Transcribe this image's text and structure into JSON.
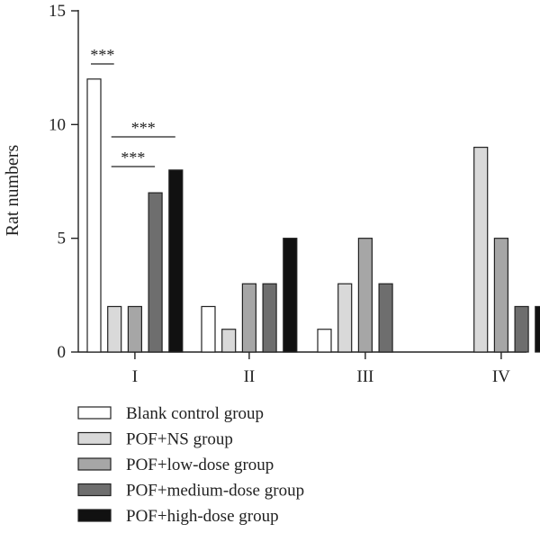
{
  "chart_data": {
    "type": "bar",
    "title": "",
    "xlabel": "",
    "ylabel": "Rat numbers",
    "ylim": [
      0,
      15
    ],
    "yticks": [
      0,
      5,
      10,
      15
    ],
    "categories": [
      "I",
      "II",
      "III",
      "IV"
    ],
    "series": [
      {
        "name": "Blank control group",
        "color": "#ffffff",
        "values": [
          12,
          2,
          1,
          0
        ]
      },
      {
        "name": "POF+NS group",
        "color": "#d9d9d9",
        "values": [
          2,
          1,
          3,
          9
        ]
      },
      {
        "name": "POF+low-dose group",
        "color": "#a6a6a6",
        "values": [
          2,
          3,
          5,
          5
        ]
      },
      {
        "name": "POF+medium-dose group",
        "color": "#6e6e6e",
        "values": [
          7,
          3,
          3,
          2
        ]
      },
      {
        "name": "POF+high-dose group",
        "color": "#111111",
        "values": [
          8,
          5,
          0,
          2
        ]
      }
    ],
    "annotations": [
      {
        "text": "***",
        "category": "I",
        "from_series": 0,
        "to_series": 1
      },
      {
        "text": "***",
        "category": "I",
        "from_series": 1,
        "to_series": 4
      },
      {
        "text": "***",
        "category": "I",
        "from_series": 1,
        "to_series": 3
      }
    ],
    "grid": false,
    "legend_position": "bottom"
  }
}
